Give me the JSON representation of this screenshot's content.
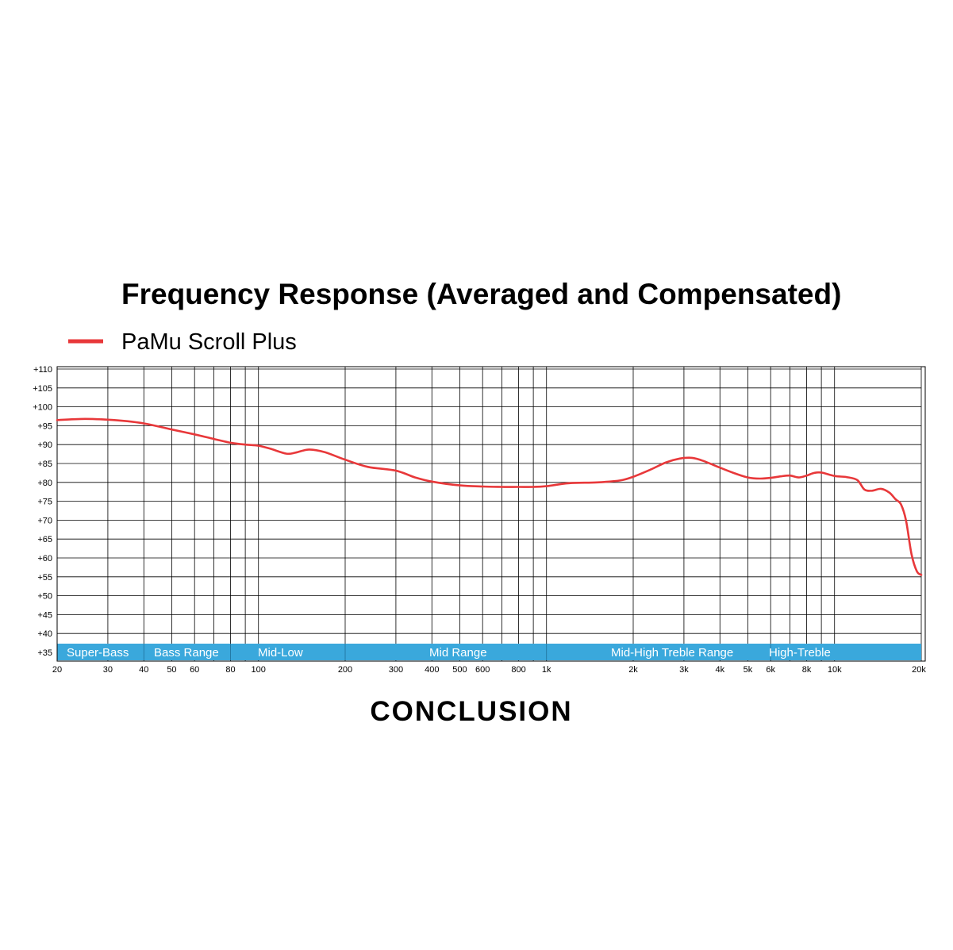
{
  "chart_data": {
    "type": "line",
    "title": "Frequency Response (Averaged and Compensated)",
    "xlabel": "",
    "ylabel": "",
    "x_scale": "log",
    "xlim": [
      20,
      20000
    ],
    "ylim": [
      35,
      110
    ],
    "grid": true,
    "legend_position": "top-left",
    "x_ticks": [
      {
        "value": 20,
        "label": "20"
      },
      {
        "value": 30,
        "label": "30"
      },
      {
        "value": 40,
        "label": "40"
      },
      {
        "value": 50,
        "label": "50"
      },
      {
        "value": 60,
        "label": "60"
      },
      {
        "value": 80,
        "label": "80"
      },
      {
        "value": 100,
        "label": "100"
      },
      {
        "value": 200,
        "label": "200"
      },
      {
        "value": 300,
        "label": "300"
      },
      {
        "value": 400,
        "label": "400"
      },
      {
        "value": 500,
        "label": "500"
      },
      {
        "value": 600,
        "label": "600"
      },
      {
        "value": 800,
        "label": "800"
      },
      {
        "value": 1000,
        "label": "1k"
      },
      {
        "value": 2000,
        "label": "2k"
      },
      {
        "value": 3000,
        "label": "3k"
      },
      {
        "value": 4000,
        "label": "4k"
      },
      {
        "value": 5000,
        "label": "5k"
      },
      {
        "value": 6000,
        "label": "6k"
      },
      {
        "value": 8000,
        "label": "8k"
      },
      {
        "value": 10000,
        "label": "10k"
      },
      {
        "value": 20000,
        "label": "20k"
      }
    ],
    "x_gridlines": [
      20,
      30,
      40,
      50,
      60,
      70,
      80,
      90,
      100,
      200,
      300,
      400,
      500,
      600,
      700,
      800,
      900,
      1000,
      2000,
      3000,
      4000,
      5000,
      6000,
      7000,
      8000,
      9000,
      10000,
      20000
    ],
    "y_ticks": [
      {
        "value": 35,
        "label": "+35"
      },
      {
        "value": 40,
        "label": "+40"
      },
      {
        "value": 45,
        "label": "+45"
      },
      {
        "value": 50,
        "label": "+50"
      },
      {
        "value": 55,
        "label": "+55"
      },
      {
        "value": 60,
        "label": "+60"
      },
      {
        "value": 65,
        "label": "+65"
      },
      {
        "value": 70,
        "label": "+70"
      },
      {
        "value": 75,
        "label": "+75"
      },
      {
        "value": 80,
        "label": "+80"
      },
      {
        "value": 85,
        "label": "+85"
      },
      {
        "value": 90,
        "label": "+90"
      },
      {
        "value": 95,
        "label": "+95"
      },
      {
        "value": 100,
        "label": "+100"
      },
      {
        "value": 105,
        "label": "+105"
      },
      {
        "value": 110,
        "label": "+110"
      }
    ],
    "bands": [
      {
        "label": "Super-Bass",
        "from": 20,
        "to": 40
      },
      {
        "label": "Bass Range",
        "from": 40,
        "to": 80
      },
      {
        "label": "Mid-Low",
        "from": 80,
        "to": 200
      },
      {
        "label": "Mid Range",
        "from": 200,
        "to": 1000
      },
      {
        "label": "Mid-High Treble Range",
        "from": 1000,
        "to": 6000
      },
      {
        "label": "High-Treble",
        "from": 6000,
        "to": 20000
      }
    ],
    "band_color": "#3aa8dc",
    "series": [
      {
        "name": "PaMu Scroll Plus",
        "color": "#e8383a",
        "x": [
          20,
          25,
          30,
          35,
          40,
          45,
          50,
          60,
          70,
          80,
          90,
          100,
          110,
          125,
          135,
          150,
          170,
          200,
          240,
          300,
          350,
          400,
          500,
          600,
          700,
          800,
          900,
          1000,
          1200,
          1500,
          1800,
          2000,
          2300,
          2600,
          2900,
          3200,
          3500,
          4000,
          4500,
          5000,
          5500,
          6000,
          6500,
          7000,
          7500,
          8000,
          8500,
          9000,
          10000,
          11000,
          12000,
          12700,
          13500,
          14500,
          15500,
          16300,
          17000,
          17700,
          18500,
          19300,
          20000
        ],
        "y": [
          96.5,
          96.8,
          96.6,
          96.2,
          95.6,
          94.8,
          94.0,
          92.7,
          91.5,
          90.5,
          90.0,
          89.7,
          88.9,
          87.6,
          87.9,
          88.7,
          88.0,
          86.0,
          84.1,
          83.1,
          81.3,
          80.2,
          79.2,
          78.9,
          78.8,
          78.8,
          78.8,
          79.0,
          79.8,
          80.0,
          80.5,
          81.5,
          83.4,
          85.3,
          86.3,
          86.5,
          85.7,
          83.9,
          82.4,
          81.3,
          81.0,
          81.2,
          81.6,
          81.8,
          81.3,
          81.8,
          82.5,
          82.6,
          81.7,
          81.4,
          80.6,
          78.1,
          77.8,
          78.3,
          77.3,
          75.5,
          74.2,
          70.0,
          61.0,
          56.5,
          55.5
        ]
      }
    ]
  },
  "footer": {
    "heading": "CONCLUSION"
  }
}
